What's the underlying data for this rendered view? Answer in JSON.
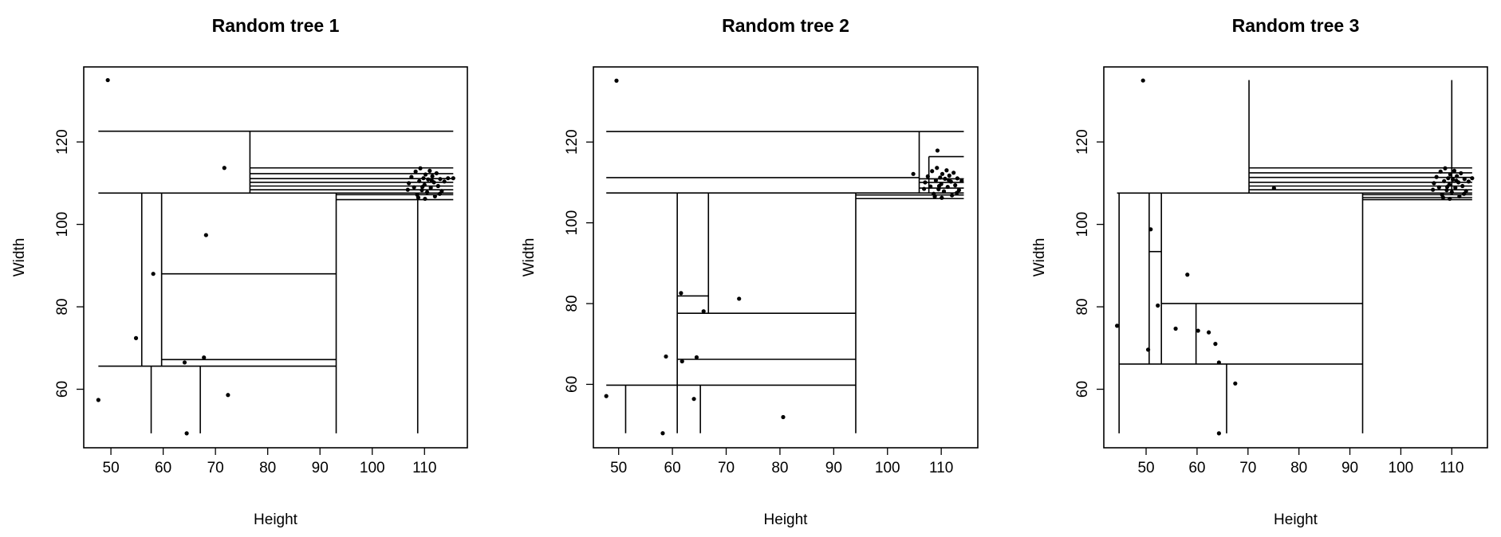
{
  "chart_data": [
    {
      "type": "scatter",
      "title": "Random tree 1",
      "x_label": "Height",
      "y_label": "Width",
      "color": "#000000",
      "xlim": [
        44.8,
        118.2
      ],
      "ylim": [
        45.8,
        138.2
      ],
      "xticks": [
        50,
        60,
        70,
        80,
        90,
        100,
        110
      ],
      "yticks": [
        60,
        80,
        100,
        120
      ],
      "x": [
        49.4,
        47.6,
        54.8,
        58.1,
        68.2,
        71.7,
        64.1,
        67.8,
        64.5,
        72.4,
        107,
        107.5,
        108,
        108.3,
        108.6,
        109,
        109.2,
        109.5,
        109.8,
        110,
        110.2,
        110.5,
        110.7,
        111,
        111.2,
        111.5,
        111.8,
        112,
        112.3,
        112.6,
        113,
        113.3,
        113.8,
        114.5,
        108.8,
        110.1,
        106.8,
        109.6,
        111.4,
        112.9,
        115.5
      ],
      "values": [
        135,
        57.4,
        72.4,
        88,
        97.4,
        113.7,
        66.5,
        67.7,
        49.3,
        58.6,
        110,
        111.5,
        109,
        112.8,
        107.2,
        110.5,
        113.6,
        108.3,
        111.2,
        109.6,
        112.1,
        107.8,
        110.9,
        113,
        108.9,
        111.7,
        110.2,
        106.8,
        112.4,
        109.3,
        111,
        108.1,
        110.4,
        111.2,
        106.5,
        106.2,
        108.4,
        109.1,
        110.6,
        107.4,
        111.2
      ],
      "segments": [
        {
          "x": [
            47.6,
            115.5
          ],
          "y": [
            122.6,
            122.6
          ]
        },
        {
          "x": [
            76.6,
            76.6
          ],
          "y": [
            107.6,
            122.6
          ]
        },
        {
          "x": [
            47.6,
            115.5
          ],
          "y": [
            107.6,
            107.6
          ]
        },
        {
          "x": [
            76.6,
            115.5
          ],
          "y": [
            113.7,
            113.7
          ]
        },
        {
          "x": [
            76.6,
            115.5
          ],
          "y": [
            112.3,
            112.3
          ]
        },
        {
          "x": [
            76.6,
            115.5
          ],
          "y": [
            111.1,
            111.1
          ]
        },
        {
          "x": [
            76.6,
            115.5
          ],
          "y": [
            110.2,
            110.2
          ]
        },
        {
          "x": [
            76.6,
            115.5
          ],
          "y": [
            109.3,
            109.3
          ]
        },
        {
          "x": [
            76.6,
            115.5
          ],
          "y": [
            108.4,
            108.4
          ]
        },
        {
          "x": [
            93.1,
            93.1
          ],
          "y": [
            49.3,
            107.6
          ]
        },
        {
          "x": [
            93.1,
            115.5
          ],
          "y": [
            107.2,
            107.2
          ]
        },
        {
          "x": [
            93.1,
            115.5
          ],
          "y": [
            106,
            106
          ]
        },
        {
          "x": [
            108.7,
            108.7
          ],
          "y": [
            49.3,
            106
          ]
        },
        {
          "x": [
            55.9,
            55.9
          ],
          "y": [
            65.6,
            107.6
          ]
        },
        {
          "x": [
            59.7,
            59.7
          ],
          "y": [
            65.6,
            107.6
          ]
        },
        {
          "x": [
            59.7,
            93.1
          ],
          "y": [
            88,
            88
          ]
        },
        {
          "x": [
            59.7,
            93.1
          ],
          "y": [
            67.2,
            67.2
          ]
        },
        {
          "x": [
            47.6,
            93.1
          ],
          "y": [
            65.6,
            65.6
          ]
        },
        {
          "x": [
            57.7,
            57.7
          ],
          "y": [
            49.3,
            65.6
          ]
        },
        {
          "x": [
            67.1,
            67.1
          ],
          "y": [
            49.3,
            65.6
          ]
        }
      ]
    },
    {
      "type": "scatter",
      "title": "Random tree 2",
      "x_label": "Height",
      "y_label": "Width",
      "color": "#000000",
      "xlim": [
        45.3,
        116.8
      ],
      "ylim": [
        44.3,
        138.6
      ],
      "xticks": [
        50,
        60,
        70,
        80,
        90,
        100,
        110
      ],
      "yticks": [
        60,
        80,
        100,
        120
      ],
      "x": [
        49.6,
        47.7,
        58.2,
        58.8,
        61.6,
        61.8,
        64.5,
        65.8,
        64,
        72.4,
        80.6,
        109.3,
        104.8,
        107,
        107.5,
        108,
        108.3,
        108.6,
        109,
        109.2,
        109.5,
        109.8,
        110,
        110.2,
        110.5,
        110.7,
        111,
        111.2,
        111.5,
        111.8,
        112,
        112.3,
        112.6,
        113,
        113.3,
        113.8,
        108.8,
        110.1,
        106.8,
        109.6,
        111.4,
        112.9
      ],
      "values": [
        135.2,
        57.1,
        47.9,
        66.9,
        82.6,
        65.7,
        66.7,
        78.1,
        56.4,
        81.2,
        51.9,
        117.9,
        112.1,
        110,
        111.5,
        109,
        112.8,
        107.2,
        110.5,
        113.6,
        108.3,
        111.2,
        109.6,
        112.1,
        107.8,
        110.9,
        113,
        108.9,
        111.7,
        110.2,
        106.8,
        112.4,
        109.3,
        111,
        108.1,
        110.4,
        106.5,
        106.2,
        108.4,
        109.1,
        110.6,
        107.4
      ],
      "segments": [
        {
          "x": [
            47.7,
            114.2
          ],
          "y": [
            122.6,
            122.6
          ]
        },
        {
          "x": [
            105.9,
            105.9
          ],
          "y": [
            107.4,
            122.6
          ]
        },
        {
          "x": [
            47.7,
            105.9
          ],
          "y": [
            111.2,
            111.2
          ]
        },
        {
          "x": [
            47.7,
            114.2
          ],
          "y": [
            107.4,
            107.4
          ]
        },
        {
          "x": [
            107.7,
            114.2
          ],
          "y": [
            116.4,
            116.4
          ]
        },
        {
          "x": [
            107.7,
            107.7
          ],
          "y": [
            107.4,
            116.4
          ]
        },
        {
          "x": [
            105.9,
            114.2
          ],
          "y": [
            110.9,
            110.9
          ]
        },
        {
          "x": [
            105.9,
            114.2
          ],
          "y": [
            110,
            110
          ]
        },
        {
          "x": [
            105.9,
            114.2
          ],
          "y": [
            108.6,
            108.6
          ]
        },
        {
          "x": [
            94.1,
            94.1
          ],
          "y": [
            47.9,
            107.4
          ]
        },
        {
          "x": [
            94.1,
            114.2
          ],
          "y": [
            106.9,
            106.9
          ]
        },
        {
          "x": [
            94.1,
            114.2
          ],
          "y": [
            106,
            106
          ]
        },
        {
          "x": [
            60.9,
            60.9
          ],
          "y": [
            47.9,
            107.4
          ]
        },
        {
          "x": [
            66.7,
            66.7
          ],
          "y": [
            77.6,
            107.4
          ]
        },
        {
          "x": [
            60.9,
            66.7
          ],
          "y": [
            81.9,
            81.9
          ]
        },
        {
          "x": [
            60.9,
            94.1
          ],
          "y": [
            77.6,
            77.6
          ]
        },
        {
          "x": [
            60.9,
            94.1
          ],
          "y": [
            66.2,
            66.2
          ]
        },
        {
          "x": [
            47.7,
            94.1
          ],
          "y": [
            59.8,
            59.8
          ]
        },
        {
          "x": [
            51.3,
            51.3
          ],
          "y": [
            47.9,
            59.8
          ]
        },
        {
          "x": [
            65.2,
            65.2
          ],
          "y": [
            47.9,
            59.8
          ]
        }
      ]
    },
    {
      "type": "scatter",
      "title": "Random tree 3",
      "x_label": "Height",
      "y_label": "Width",
      "color": "#000000",
      "xlim": [
        41.7,
        117
      ],
      "ylim": [
        45.8,
        138.2
      ],
      "xticks": [
        50,
        60,
        70,
        80,
        90,
        100,
        110
      ],
      "yticks": [
        60,
        80,
        100,
        120
      ],
      "x": [
        49.4,
        44.3,
        50.4,
        50.9,
        52.3,
        58.1,
        55.8,
        60.2,
        62.3,
        63.6,
        64.3,
        67.5,
        64.3,
        75.1,
        106.5,
        107,
        107.5,
        107.8,
        108.1,
        108.5,
        108.7,
        109,
        109.3,
        109.5,
        109.7,
        110,
        110.2,
        110.5,
        110.7,
        111,
        111.3,
        111.5,
        111.8,
        112.1,
        112.5,
        112.8,
        113.3,
        114,
        108.3,
        109.6,
        106.3,
        109.1,
        110.9,
        112.4
      ],
      "values": [
        134.9,
        75.4,
        69.6,
        98.8,
        80.3,
        87.8,
        74.7,
        74.2,
        73.8,
        71,
        66.5,
        61.4,
        49.3,
        108.8,
        110,
        111.5,
        109,
        112.8,
        107.2,
        110.5,
        113.6,
        108.3,
        111.2,
        109.6,
        112.1,
        107.8,
        110.9,
        113,
        108.9,
        111.7,
        110.2,
        106.8,
        112.4,
        109.3,
        111,
        108.1,
        110.4,
        111.2,
        106.5,
        106.2,
        108.4,
        109.1,
        110.6,
        107.4
      ],
      "segments": [
        {
          "x": [
            70.2,
            70.2
          ],
          "y": [
            107.6,
            135
          ]
        },
        {
          "x": [
            110,
            110
          ],
          "y": [
            107.6,
            135
          ]
        },
        {
          "x": [
            70.2,
            114
          ],
          "y": [
            113.7,
            113.7
          ]
        },
        {
          "x": [
            70.2,
            114
          ],
          "y": [
            112.5,
            112.5
          ]
        },
        {
          "x": [
            70.2,
            114
          ],
          "y": [
            111.4,
            111.4
          ]
        },
        {
          "x": [
            70.2,
            114
          ],
          "y": [
            110.2,
            110.2
          ]
        },
        {
          "x": [
            70.2,
            114
          ],
          "y": [
            109.3,
            109.3
          ]
        },
        {
          "x": [
            70.2,
            114
          ],
          "y": [
            108.4,
            108.4
          ]
        },
        {
          "x": [
            44.3,
            114
          ],
          "y": [
            107.6,
            107.6
          ]
        },
        {
          "x": [
            92.5,
            92.5
          ],
          "y": [
            49.3,
            107.6
          ]
        },
        {
          "x": [
            92.5,
            114
          ],
          "y": [
            107.2,
            107.2
          ]
        },
        {
          "x": [
            92.5,
            114
          ],
          "y": [
            106.5,
            106.5
          ]
        },
        {
          "x": [
            92.5,
            114
          ],
          "y": [
            106,
            106
          ]
        },
        {
          "x": [
            44.7,
            44.7
          ],
          "y": [
            49.3,
            107.6
          ]
        },
        {
          "x": [
            50.6,
            50.6
          ],
          "y": [
            66.1,
            107.6
          ]
        },
        {
          "x": [
            53,
            53
          ],
          "y": [
            66.1,
            107.6
          ]
        },
        {
          "x": [
            50.6,
            53
          ],
          "y": [
            93.4,
            93.4
          ]
        },
        {
          "x": [
            53,
            92.5
          ],
          "y": [
            80.8,
            80.8
          ]
        },
        {
          "x": [
            59.8,
            59.8
          ],
          "y": [
            66.1,
            80.8
          ]
        },
        {
          "x": [
            44.7,
            92.5
          ],
          "y": [
            66.1,
            66.1
          ]
        },
        {
          "x": [
            65.8,
            65.8
          ],
          "y": [
            49.3,
            66.1
          ]
        }
      ]
    }
  ]
}
